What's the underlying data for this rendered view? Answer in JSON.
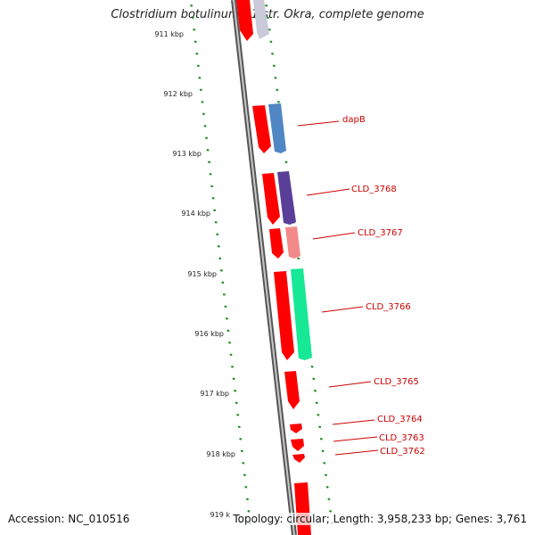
{
  "title": "Clostridium botulinum B1 str. Okra, complete genome",
  "accession": "Accession: NC_010516",
  "footer_info": "Topology: circular; Length: 3,958,233 bp; Genes: 3,761",
  "colors": {
    "backbone": "#8c8c8c",
    "tick": "#1a8c1a",
    "label": "#cc0000",
    "forward_gene": "#ff0000"
  },
  "ruler_labels": [
    "911 kbp",
    "912 kbp",
    "913 kbp",
    "914 kbp",
    "915 kbp",
    "916 kbp",
    "917 kbp",
    "918 kbp",
    "919 k"
  ],
  "gene_labels": [
    "dapB",
    "CLD_3768",
    "CLD_3767",
    "CLD_3766",
    "CLD_3765",
    "CLD_3764",
    "CLD_3763",
    "CLD_3762"
  ]
}
